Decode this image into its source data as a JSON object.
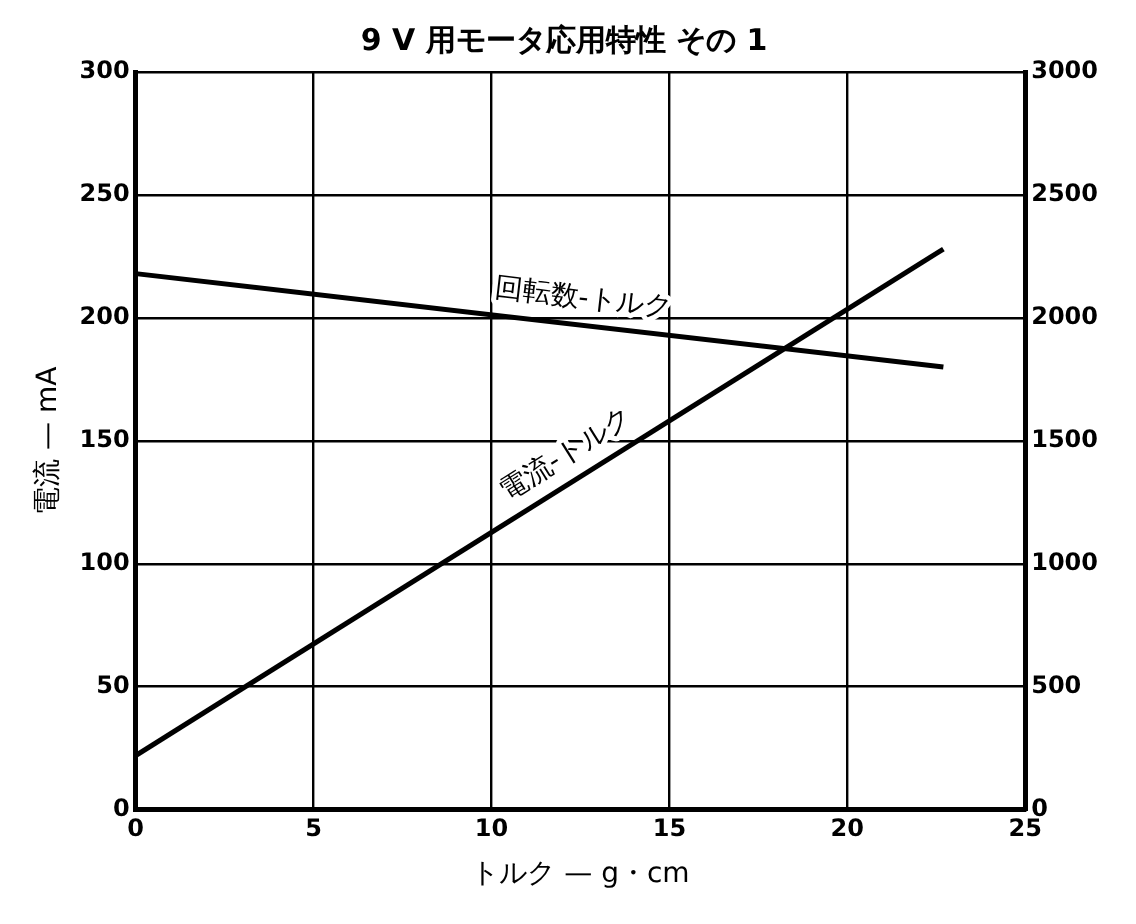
{
  "chart_data": {
    "type": "line",
    "title": "9 V 用モータ応用特性 その 1",
    "xlabel": "トルク — g・cm",
    "ylabel": "電流 — mA",
    "x": [
      0,
      22.7
    ],
    "series": [
      {
        "color": "#000000",
        "values": [
          2180,
          1800
        ],
        "axis": "y2"
      },
      {
        "color": "#000000",
        "values": [
          22,
          228
        ]
      }
    ],
    "xlim": [
      0,
      25
    ],
    "xticks": [
      0,
      5,
      10,
      15,
      20,
      25
    ],
    "ylim": [
      0,
      300
    ],
    "yticks": [
      0,
      50,
      100,
      150,
      200,
      250,
      300
    ],
    "y2lim": [
      0,
      3000
    ],
    "y2ticks": [
      0,
      500,
      1000,
      1500,
      2000,
      2500,
      3000
    ],
    "annotations": [
      "回転数-トルク",
      "電流-トルク"
    ],
    "grid": true,
    "legend": false,
    "marker": "none",
    "line_style": "solid"
  }
}
